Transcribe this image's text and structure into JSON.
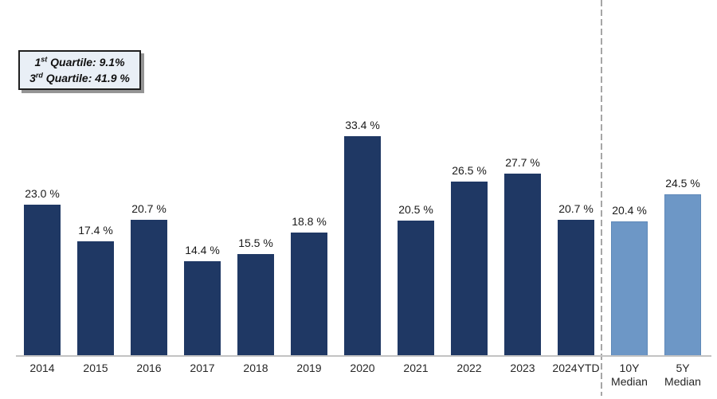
{
  "callout": {
    "lines": [
      {
        "num": "1",
        "sup": "st",
        "rest": " Quartile: 9.1%"
      },
      {
        "num": "3",
        "sup": "rd",
        "rest": " Quartile: 41.9 %"
      }
    ]
  },
  "chart_data": {
    "type": "bar",
    "title": "",
    "xlabel": "",
    "ylabel": "",
    "categories": [
      "2014",
      "2015",
      "2016",
      "2017",
      "2018",
      "2019",
      "2020",
      "2021",
      "2022",
      "2023",
      "2024YTD",
      "10Y Median",
      "5Y Median"
    ],
    "values": [
      23.0,
      17.4,
      20.7,
      14.4,
      15.5,
      18.8,
      33.4,
      20.5,
      26.5,
      27.7,
      20.7,
      20.4,
      24.5
    ],
    "value_labels": [
      "23.0 %",
      "17.4 %",
      "20.7 %",
      "14.4 %",
      "15.5 %",
      "18.8 %",
      "33.4 %",
      "20.5 %",
      "26.5 %",
      "27.7 %",
      "20.7 %",
      "20.4 %",
      "24.5 %"
    ],
    "historical_count": 11,
    "ylim": [
      0,
      54
    ],
    "grid": false,
    "legend": "none",
    "annotations": [
      "1st Quartile: 9.1%",
      "3rd Quartile: 41.9 %"
    ],
    "colors": {
      "bar_dark": "#1F3864",
      "bar_light": "#6D97C6",
      "axis_line": "#C3C3C3",
      "separator": "#A6A6A6",
      "label_text": "#1A1A1A",
      "callout_bg": "#E9EFF6",
      "callout_border": "#1F1F1F"
    }
  }
}
